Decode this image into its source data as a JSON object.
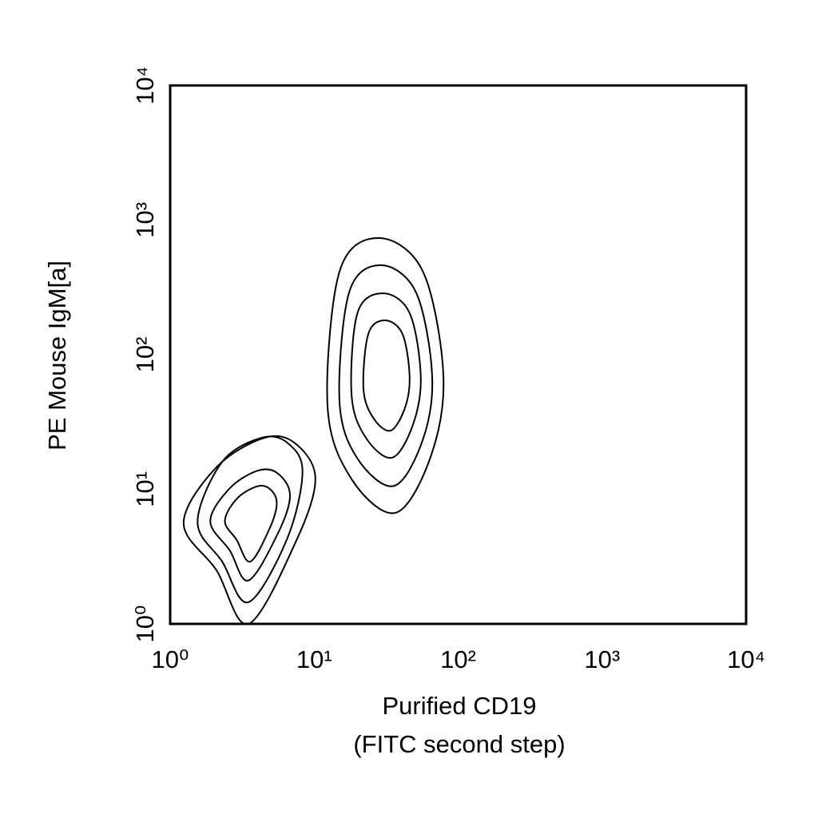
{
  "chart_data": {
    "type": "contour",
    "xlabel": [
      "Purified CD19",
      "(FITC second step)"
    ],
    "ylabel": "PE Mouse IgM[a]",
    "xscale": "log",
    "yscale": "log",
    "xlim": [
      1,
      10000
    ],
    "ylim": [
      1,
      10000
    ],
    "xticks": [
      {
        "value": 1,
        "label": "10⁰"
      },
      {
        "value": 10,
        "label": "10¹"
      },
      {
        "value": 100,
        "label": "10²"
      },
      {
        "value": 1000,
        "label": "10³"
      },
      {
        "value": 10000,
        "label": "10⁴"
      }
    ],
    "yticks": [
      {
        "value": 1,
        "label": "10⁰"
      },
      {
        "value": 10,
        "label": "10¹"
      },
      {
        "value": 100,
        "label": "10²"
      },
      {
        "value": 1000,
        "label": "10³"
      },
      {
        "value": 10000,
        "label": "10⁴"
      }
    ],
    "color": "#000000",
    "contours": [
      {
        "x": [
          10.2,
          7.4,
          4.5,
          2.1,
          1.24,
          2.1,
          3.5,
          7.4
        ],
        "y": [
          11.9,
          21.9,
          24.1,
          14.6,
          5.6,
          2.5,
          1.0,
          4.0
        ]
      },
      {
        "x": [
          8.3,
          6.5,
          4.3,
          2.3,
          1.55,
          2.3,
          3.5,
          6.5
        ],
        "y": [
          13.6,
          22.2,
          24.1,
          16.0,
          5.7,
          2.9,
          1.45,
          4.3
        ]
      },
      {
        "x": [
          6.8,
          5.6,
          4.1,
          2.6,
          1.9,
          2.6,
          3.5,
          5.6
        ],
        "y": [
          9.0,
          13.1,
          13.8,
          10.2,
          5.8,
          3.5,
          2.1,
          4.7
        ]
      },
      {
        "x": [
          5.5,
          4.9,
          4.0,
          2.9,
          2.4,
          2.9,
          3.6,
          4.9
        ],
        "y": [
          7.9,
          10.1,
          10.5,
          8.5,
          5.8,
          4.2,
          2.9,
          5.1
        ]
      },
      {
        "x": [
          79,
          57,
          28,
          15,
          12.4,
          18.2,
          37,
          65
        ],
        "y": [
          70,
          414,
          735,
          414,
          41,
          11.9,
          6.7,
          17.9
        ]
      },
      {
        "x": [
          66,
          51,
          29,
          17.5,
          15,
          20,
          36,
          57
        ],
        "y": [
          70,
          290,
          462,
          290,
          45,
          16.9,
          10.6,
          23.5
        ]
      },
      {
        "x": [
          55,
          46,
          30,
          20,
          18.2,
          22.9,
          35,
          49
        ],
        "y": [
          70,
          204,
          286,
          204,
          50,
          24.1,
          17.2,
          31
        ]
      },
      {
        "x": [
          46,
          41,
          31,
          23.8,
          22,
          25.7,
          34,
          43
        ],
        "y": [
          70,
          143,
          180,
          143,
          56,
          34,
          27.3,
          41
        ]
      }
    ]
  }
}
